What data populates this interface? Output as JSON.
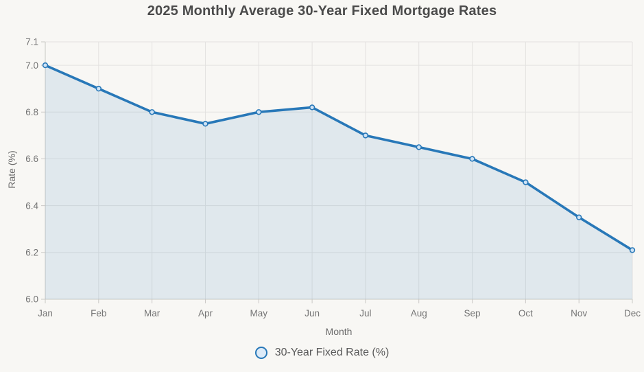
{
  "chart_data": {
    "type": "line",
    "title": "2025 Monthly Average 30-Year Fixed Mortgage Rates",
    "xlabel": "Month",
    "ylabel": "Rate (%)",
    "legend": "30-Year Fixed Rate (%)",
    "legend_position": "bottom",
    "categories": [
      "Jan",
      "Feb",
      "Mar",
      "Apr",
      "May",
      "Jun",
      "Jul",
      "Aug",
      "Sep",
      "Oct",
      "Nov",
      "Dec"
    ],
    "series": [
      {
        "name": "30-Year Fixed Rate (%)",
        "values": [
          7.0,
          6.9,
          6.8,
          6.75,
          6.8,
          6.82,
          6.7,
          6.65,
          6.6,
          6.5,
          6.35,
          6.21
        ]
      }
    ],
    "ylim": [
      6.0,
      7.1
    ],
    "yticks": [
      6.0,
      6.2,
      6.4,
      6.6,
      6.8,
      7.0,
      7.1
    ],
    "ytick_labels": [
      "6.0",
      "6.2",
      "6.4",
      "6.6",
      "6.8",
      "7.0",
      "7.1"
    ],
    "grid": true,
    "area_fill": true,
    "colors": {
      "line": "#2878b8",
      "marker_fill": "#cfe3f5",
      "area": "rgba(40,120,184,0.11)",
      "grid": "#e3e2e0",
      "axis": "#c9c8c5",
      "tick_text": "#757575",
      "title_text": "#4b4b4b",
      "background": "#f8f7f4"
    }
  }
}
